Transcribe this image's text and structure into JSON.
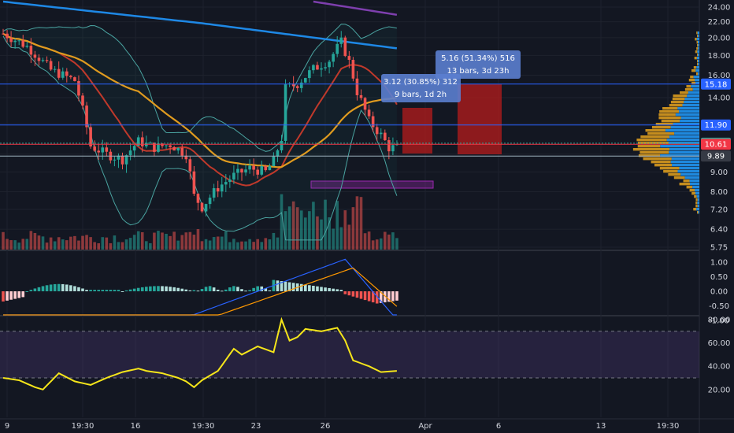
{
  "chart_data": {
    "type": "candlestick",
    "panes": [
      "price",
      "macd",
      "rsi"
    ],
    "price_axis": {
      "ticks": [
        "24.00",
        "22.00",
        "20.00",
        "18.00",
        "16.00",
        "14.00",
        "12.00",
        "10.00",
        "9.00",
        "8.00",
        "7.20",
        "6.40",
        "5.75"
      ],
      "tick_values": [
        24,
        22,
        20,
        18,
        16,
        14,
        12,
        10,
        9,
        8,
        7.2,
        6.4,
        5.75
      ],
      "scale": "log"
    },
    "price_levels": [
      {
        "label": "15.18",
        "value": 15.18,
        "color": "#2962ff",
        "line": "solid"
      },
      {
        "label": "11.90",
        "value": 11.9,
        "color": "#2962ff",
        "line": "solid"
      },
      {
        "label": "10.68",
        "value": 10.68,
        "color": "#26a69a",
        "line": "dotted"
      },
      {
        "label": "10.61",
        "value": 10.61,
        "color": "#f23645",
        "line": "solid"
      },
      {
        "label": "9.89",
        "value": 9.89,
        "color": "#9db2bd",
        "line": "solid"
      }
    ],
    "time_axis": [
      "9",
      "19:30",
      "16",
      "19:30",
      "23",
      "26",
      "Apr",
      "6",
      "13",
      "19:30"
    ],
    "macd_axis": [
      "1.00",
      "0.50",
      "0.00",
      "-0.50",
      "-1.00"
    ],
    "macd_values": [
      1,
      0.5,
      0,
      -0.5,
      -1
    ],
    "rsi_axis": [
      "80.00",
      "60.00",
      "40.00",
      "20.00"
    ],
    "rsi_values": [
      80,
      60,
      40,
      20
    ],
    "rsi_band": [
      30,
      70
    ],
    "annotations": [
      {
        "line1": "3.12 (30.85%) 312",
        "line2": "9 bars, 1d 2h"
      },
      {
        "line1": "5.16 (51.34%) 516",
        "line2": "13 bars, 3d 23h"
      }
    ],
    "colors": {
      "up": "#26a69a",
      "down": "#ef5350",
      "volume_profile_up": "#2196f3",
      "volume_profile_down": "#d99a1e",
      "rsi_line": "#f5e51a",
      "background": "#131722"
    }
  }
}
